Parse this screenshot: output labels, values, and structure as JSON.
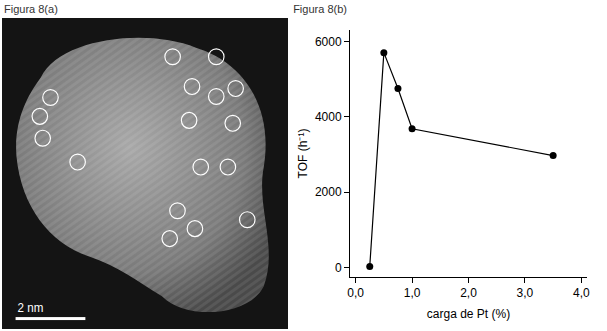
{
  "figure_a": {
    "title": "Figura 8(a)",
    "scale_bar": "2 nm"
  },
  "chart_data": {
    "type": "line",
    "title": "Figura 8(b)",
    "x": [
      0.25,
      0.5,
      0.75,
      1.0,
      3.5
    ],
    "values": [
      30,
      5700,
      4750,
      3680,
      2970
    ],
    "xlabel": "carga de Pt (%)",
    "ylabel": "TOF (h⁻¹)",
    "xlim": [
      -0.1,
      4.1
    ],
    "ylim": [
      -250,
      6300
    ],
    "xticks": [
      {
        "value": 0,
        "label": "0,0"
      },
      {
        "value": 1,
        "label": "1,0"
      },
      {
        "value": 2,
        "label": "2,0"
      },
      {
        "value": 3,
        "label": "3,0"
      },
      {
        "value": 4,
        "label": "4,0"
      }
    ],
    "yticks": [
      0,
      2000,
      4000,
      6000
    ],
    "color": "#000000",
    "marker": "circle",
    "line_style": "solid",
    "grid": false
  }
}
